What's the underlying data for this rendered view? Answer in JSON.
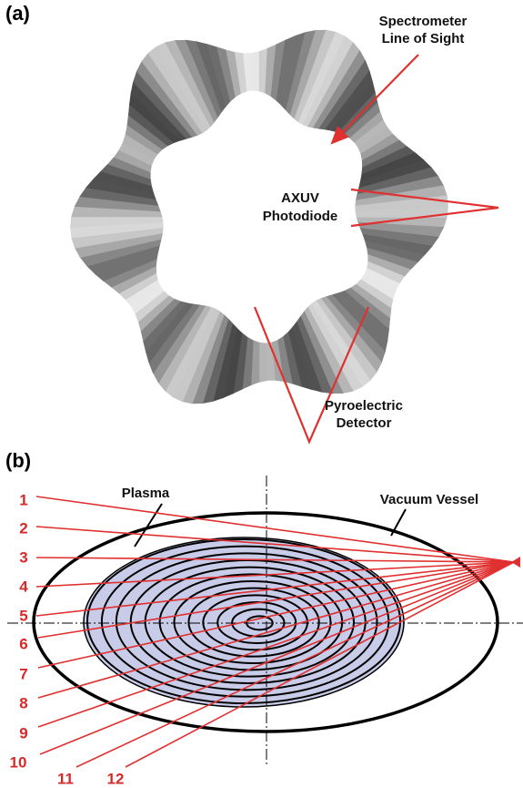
{
  "panel_a": {
    "label": "(a)",
    "spectrometer": [
      "Spectrometer",
      "Line of Sight"
    ],
    "photodiode": [
      "AXUV",
      "Photodiode"
    ],
    "pyroelectric": [
      "Pyroelectric",
      "Detector"
    ]
  },
  "panel_b": {
    "label": "(b)",
    "plasma": "Plasma",
    "vessel": "Vacuum Vessel",
    "chords": [
      1,
      2,
      3,
      4,
      5,
      6,
      7,
      8,
      9,
      10,
      11,
      12
    ]
  }
}
